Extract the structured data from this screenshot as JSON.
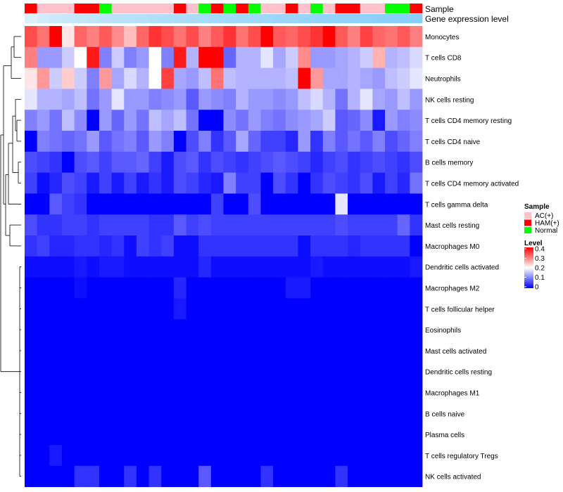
{
  "chart_data": {
    "type": "heatmap",
    "title": "",
    "columns": 32,
    "annotations": {
      "sample_label": "Sample",
      "expression_label": "Gene expression level",
      "sample": [
        "HAM(+)",
        "AC(+)",
        "AC(+)",
        "AC(+)",
        "HAM(+)",
        "HAM(+)",
        "Normal",
        "AC(+)",
        "AC(+)",
        "AC(+)",
        "AC(+)",
        "AC(+)",
        "HAM(+)",
        "AC(+)",
        "Normal",
        "HAM(+)",
        "Normal",
        "HAM(+)",
        "Normal",
        "AC(+)",
        "AC(+)",
        "HAM(+)",
        "AC(+)",
        "Normal",
        "AC(+)",
        "HAM(+)",
        "HAM(+)",
        "AC(+)",
        "AC(+)",
        "Normal",
        "Normal",
        "HAM(+)"
      ]
    },
    "rows": [
      {
        "name": "Monocytes",
        "values": [
          0.34,
          0.31,
          0.4,
          0.22,
          0.32,
          0.3,
          0.33,
          0.29,
          0.25,
          0.32,
          0.36,
          0.34,
          0.31,
          0.34,
          0.3,
          0.33,
          0.36,
          0.31,
          0.34,
          0.4,
          0.33,
          0.32,
          0.34,
          0.36,
          0.42,
          0.33,
          0.3,
          0.35,
          0.32,
          0.31,
          0.33,
          0.3
        ]
      },
      {
        "name": "T cells CD8",
        "values": [
          0.3,
          0.12,
          0.12,
          0.16,
          0.2,
          0.38,
          0.1,
          0.16,
          0.1,
          0.12,
          0.2,
          0.1,
          0.38,
          0.14,
          0.4,
          0.4,
          0.08,
          0.14,
          0.14,
          0.18,
          0.13,
          0.16,
          0.29,
          0.12,
          0.12,
          0.13,
          0.14,
          0.16,
          0.26,
          0.14,
          0.15,
          0.17
        ]
      },
      {
        "name": "Neutrophils",
        "values": [
          0.22,
          0.28,
          0.16,
          0.24,
          0.16,
          0.1,
          0.28,
          0.13,
          0.17,
          0.14,
          0.2,
          0.35,
          0.13,
          0.12,
          0.15,
          0.31,
          0.15,
          0.14,
          0.14,
          0.14,
          0.14,
          0.15,
          0.4,
          0.28,
          0.13,
          0.13,
          0.14,
          0.13,
          0.12,
          0.15,
          0.16,
          0.18
        ]
      },
      {
        "name": "NK cells resting",
        "values": [
          0.18,
          0.14,
          0.14,
          0.13,
          0.15,
          0.09,
          0.12,
          0.18,
          0.12,
          0.12,
          0.1,
          0.11,
          0.12,
          0.07,
          0.12,
          0.11,
          0.1,
          0.14,
          0.12,
          0.12,
          0.11,
          0.12,
          0.15,
          0.17,
          0.14,
          0.09,
          0.14,
          0.18,
          0.13,
          0.12,
          0.15,
          0.12
        ]
      },
      {
        "name": "T cells CD4 memory resting",
        "values": [
          0.1,
          0.12,
          0.09,
          0.15,
          0.11,
          0.0,
          0.12,
          0.08,
          0.12,
          0.09,
          0.15,
          0.13,
          0.15,
          0.09,
          0.0,
          0.0,
          0.11,
          0.09,
          0.12,
          0.1,
          0.09,
          0.11,
          0.12,
          0.13,
          0.16,
          0.07,
          0.08,
          0.11,
          0.02,
          0.12,
          0.1,
          0.11
        ]
      },
      {
        "name": "T cells CD4 naive",
        "values": [
          0.0,
          0.1,
          0.09,
          0.08,
          0.09,
          0.12,
          0.07,
          0.09,
          0.1,
          0.07,
          0.12,
          0.1,
          0.0,
          0.06,
          0.1,
          0.04,
          0.07,
          0.13,
          0.08,
          0.05,
          0.05,
          0.03,
          0.12,
          0.04,
          0.1,
          0.07,
          0.09,
          0.07,
          0.1,
          0.06,
          0.08,
          0.1
        ]
      },
      {
        "name": "B cells memory",
        "values": [
          0.06,
          0.05,
          0.04,
          0.0,
          0.06,
          0.07,
          0.05,
          0.07,
          0.07,
          0.08,
          0.05,
          0.02,
          0.06,
          0.07,
          0.04,
          0.06,
          0.05,
          0.04,
          0.05,
          0.06,
          0.07,
          0.06,
          0.05,
          0.03,
          0.05,
          0.06,
          0.04,
          0.05,
          0.06,
          0.05,
          0.04,
          0.06
        ]
      },
      {
        "name": "T cells CD4 memory activated",
        "values": [
          0.05,
          0.01,
          0.03,
          0.06,
          0.05,
          0.02,
          0.05,
          0.02,
          0.05,
          0.02,
          0.04,
          0.02,
          0.06,
          0.05,
          0.03,
          0.02,
          0.1,
          0.05,
          0.05,
          0.0,
          0.06,
          0.04,
          0.0,
          0.04,
          0.06,
          0.05,
          0.04,
          0.06,
          0.02,
          0.05,
          0.03,
          0.09
        ]
      },
      {
        "name": "T cells gamma delta",
        "values": [
          0.0,
          0.0,
          0.07,
          0.05,
          0.04,
          0.0,
          0.0,
          0.0,
          0.0,
          0.0,
          0.0,
          0.0,
          0.0,
          0.0,
          0.0,
          0.05,
          0.0,
          0.0,
          0.06,
          0.0,
          0.0,
          0.0,
          0.0,
          0.0,
          0.0,
          0.18,
          0.0,
          0.0,
          0.0,
          0.0,
          0.0,
          0.0
        ]
      },
      {
        "name": "Mast cells resting",
        "values": [
          0.06,
          0.04,
          0.04,
          0.05,
          0.05,
          0.04,
          0.05,
          0.05,
          0.05,
          0.05,
          0.04,
          0.04,
          0.07,
          0.05,
          0.06,
          0.05,
          0.05,
          0.05,
          0.05,
          0.05,
          0.05,
          0.05,
          0.05,
          0.05,
          0.05,
          0.06,
          0.05,
          0.05,
          0.05,
          0.05,
          0.08,
          0.04
        ]
      },
      {
        "name": "Macrophages M0",
        "values": [
          0.04,
          0.05,
          0.03,
          0.03,
          0.04,
          0.04,
          0.03,
          0.04,
          0.01,
          0.05,
          0.04,
          0.05,
          0.01,
          0.01,
          0.04,
          0.04,
          0.04,
          0.04,
          0.04,
          0.04,
          0.04,
          0.04,
          0.01,
          0.04,
          0.04,
          0.04,
          0.03,
          0.04,
          0.04,
          0.04,
          0.04,
          0.0
        ]
      },
      {
        "name": "Dendritic cells activated",
        "values": [
          0.01,
          0.01,
          0.01,
          0.01,
          0.02,
          0.01,
          0.02,
          0.02,
          0.01,
          0.01,
          0.01,
          0.01,
          0.01,
          0.01,
          0.03,
          0.01,
          0.01,
          0.01,
          0.01,
          0.01,
          0.01,
          0.01,
          0.01,
          0.02,
          0.01,
          0.01,
          0.01,
          0.01,
          0.01,
          0.01,
          0.01,
          0.02
        ]
      },
      {
        "name": "Macrophages M2",
        "values": [
          0.0,
          0.0,
          0.0,
          0.0,
          0.01,
          0.0,
          0.0,
          0.0,
          0.0,
          0.0,
          0.0,
          0.0,
          0.03,
          0.0,
          0.0,
          0.0,
          0.0,
          0.0,
          0.0,
          0.0,
          0.0,
          0.02,
          0.02,
          0.0,
          0.0,
          0.0,
          0.0,
          0.0,
          0.0,
          0.0,
          0.0,
          0.0
        ]
      },
      {
        "name": "T cells follicular helper",
        "values": [
          0.0,
          0.0,
          0.0,
          0.0,
          0.0,
          0.0,
          0.0,
          0.0,
          0.0,
          0.0,
          0.0,
          0.0,
          0.02,
          0.0,
          0.0,
          0.0,
          0.0,
          0.0,
          0.0,
          0.0,
          0.0,
          0.0,
          0.0,
          0.0,
          0.0,
          0.0,
          0.0,
          0.0,
          0.0,
          0.0,
          0.0,
          0.0
        ]
      },
      {
        "name": "Eosinophils",
        "values": [
          0,
          0,
          0,
          0,
          0,
          0,
          0,
          0,
          0,
          0,
          0,
          0,
          0,
          0,
          0,
          0,
          0,
          0,
          0,
          0,
          0,
          0,
          0,
          0,
          0,
          0,
          0,
          0,
          0,
          0,
          0,
          0
        ]
      },
      {
        "name": "Mast cells activated",
        "values": [
          0,
          0,
          0,
          0,
          0,
          0,
          0,
          0,
          0,
          0,
          0,
          0,
          0,
          0,
          0,
          0,
          0,
          0,
          0,
          0,
          0,
          0,
          0,
          0,
          0,
          0,
          0,
          0,
          0,
          0,
          0,
          0
        ]
      },
      {
        "name": "Dendritic cells resting",
        "values": [
          0,
          0,
          0,
          0,
          0,
          0,
          0,
          0,
          0,
          0,
          0,
          0,
          0,
          0,
          0,
          0,
          0,
          0,
          0,
          0,
          0,
          0,
          0,
          0,
          0,
          0,
          0,
          0,
          0,
          0,
          0,
          0
        ]
      },
      {
        "name": "Macrophages M1",
        "values": [
          0,
          0,
          0,
          0,
          0,
          0,
          0,
          0,
          0,
          0,
          0,
          0,
          0,
          0,
          0,
          0,
          0,
          0,
          0,
          0,
          0,
          0,
          0,
          0,
          0,
          0,
          0,
          0,
          0,
          0,
          0,
          0
        ]
      },
      {
        "name": "B cells naive",
        "values": [
          0,
          0,
          0,
          0,
          0,
          0,
          0,
          0,
          0,
          0,
          0,
          0,
          0,
          0,
          0,
          0,
          0,
          0,
          0,
          0,
          0,
          0,
          0,
          0,
          0,
          0,
          0,
          0,
          0,
          0,
          0,
          0
        ]
      },
      {
        "name": "Plasma cells",
        "values": [
          0,
          0,
          0,
          0,
          0,
          0,
          0,
          0,
          0,
          0,
          0,
          0,
          0,
          0,
          0,
          0,
          0,
          0,
          0,
          0,
          0,
          0,
          0,
          0,
          0,
          0,
          0,
          0,
          0,
          0,
          0,
          0
        ]
      },
      {
        "name": "T cells regulatory  Tregs",
        "values": [
          0.0,
          0.0,
          0.02,
          0.0,
          0.0,
          0.0,
          0.0,
          0.0,
          0.0,
          0.0,
          0.0,
          0.0,
          0.0,
          0.0,
          0.0,
          0.0,
          0.0,
          0.0,
          0.0,
          0.0,
          0.0,
          0.0,
          0.0,
          0.0,
          0.0,
          0.0,
          0.0,
          0.0,
          0.0,
          0.0,
          0.0,
          0.0
        ]
      },
      {
        "name": "NK cells activated",
        "values": [
          0.0,
          0.0,
          0.0,
          0.0,
          0.04,
          0.04,
          0.0,
          0.0,
          0.04,
          0.0,
          0.04,
          0.0,
          0.0,
          0.0,
          0.07,
          0.0,
          0.0,
          0.0,
          0.0,
          0.04,
          0.0,
          0.0,
          0.0,
          0.0,
          0.0,
          0.04,
          0.0,
          0.0,
          0.0,
          0.0,
          0.0,
          0.0
        ]
      }
    ],
    "color_scale": {
      "min": 0,
      "max": 0.4,
      "low": "#0000ff",
      "mid": "#ffffff",
      "high": "#ff0000",
      "mid_value": 0.2
    },
    "legend": {
      "sample_title": "Sample",
      "sample_items": [
        {
          "label": "AC(+)",
          "color": "#ffc0cb"
        },
        {
          "label": "HAM(+)",
          "color": "#ff0000"
        },
        {
          "label": "Normal",
          "color": "#00ff00"
        }
      ],
      "level_title": "Level",
      "level_ticks": [
        "0.4",
        "0.3",
        "0.2",
        "0.1",
        "0"
      ],
      "placement": "right"
    },
    "expression_bar_color": "#87cefa",
    "dendrogram": "rows"
  }
}
